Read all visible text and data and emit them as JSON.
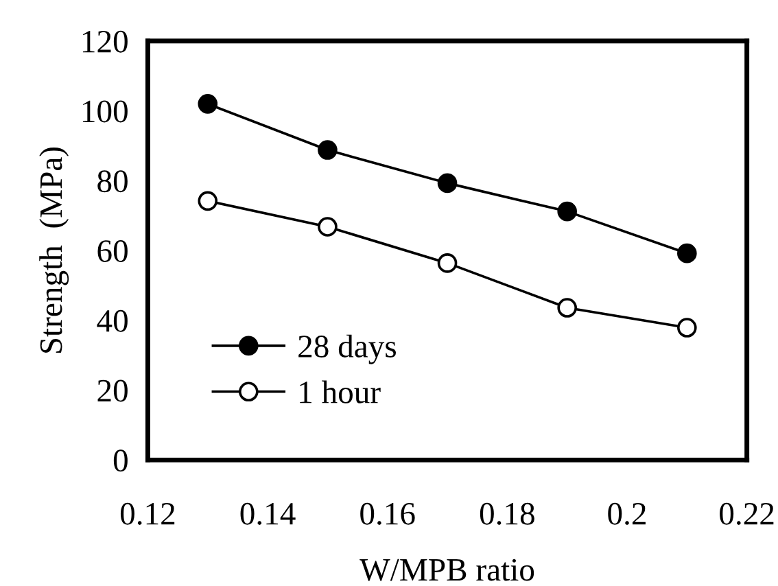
{
  "chart_data": {
    "type": "line",
    "xlabel": "W/MPB ratio",
    "ylabel": "Strength  (MPa)",
    "x": [
      0.13,
      0.15,
      0.17,
      0.19,
      0.21
    ],
    "series": [
      {
        "name": "28 days",
        "color": "#000000",
        "values": [
          102,
          88.8,
          79.3,
          71.2,
          59.2
        ]
      },
      {
        "name": "1 hour",
        "color": "#ffffff",
        "values": [
          74.2,
          66.8,
          56.4,
          43.6,
          37.9
        ]
      }
    ],
    "xlim": [
      0.12,
      0.22
    ],
    "xticks": [
      0.12,
      0.14,
      0.16,
      0.18,
      0.2,
      0.22
    ],
    "ylim": [
      0,
      120
    ],
    "yticks": [
      0,
      20,
      40,
      60,
      80,
      100,
      120
    ],
    "grid": false,
    "legend": "bottom left",
    "marker": "circle",
    "line_style": "solid"
  }
}
